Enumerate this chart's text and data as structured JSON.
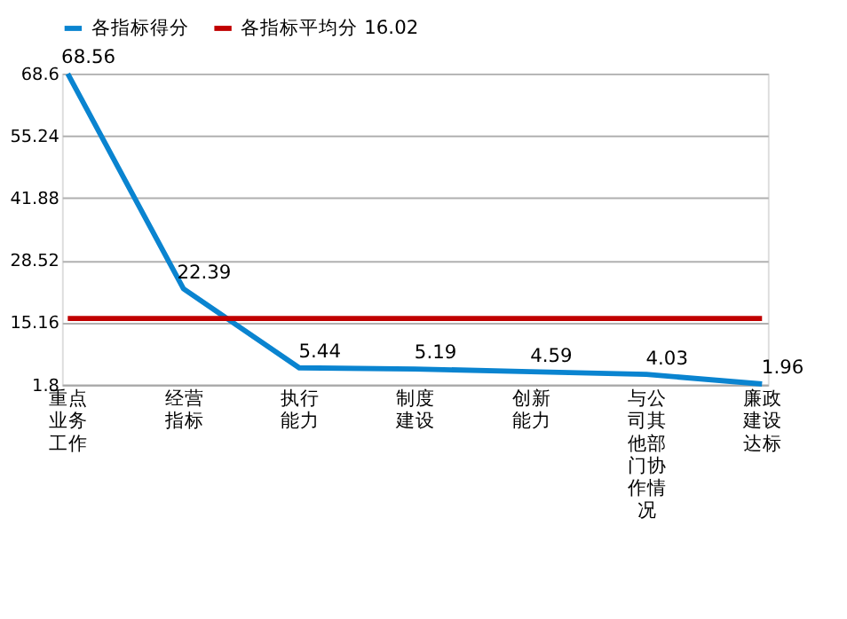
{
  "chart_data": {
    "type": "line",
    "categories": [
      "重点业务工作",
      "经营指标",
      "执行能力",
      "制度建设",
      "创新能力",
      "与公司其他部门协作情况",
      "廉政建设达标"
    ],
    "series": [
      {
        "name": "各指标得分",
        "color": "#0a84d0",
        "values": [
          68.56,
          22.39,
          5.44,
          5.19,
          4.59,
          4.03,
          1.96
        ],
        "value_labels": [
          "68.56",
          "22.39",
          "5.44",
          "5.19",
          "4.59",
          "4.03",
          "1.96"
        ]
      },
      {
        "name": "各指标平均分 16.02",
        "color": "#c00000",
        "values": [
          16.02,
          16.02,
          16.02,
          16.02,
          16.02,
          16.02,
          16.02
        ]
      }
    ],
    "ylim": [
      1.8,
      68.6
    ],
    "yticks": [
      1.8,
      15.16,
      28.52,
      41.88,
      55.24,
      68.6
    ],
    "grid": "y",
    "legend": "top",
    "marker": "none",
    "line_style": "solid"
  }
}
